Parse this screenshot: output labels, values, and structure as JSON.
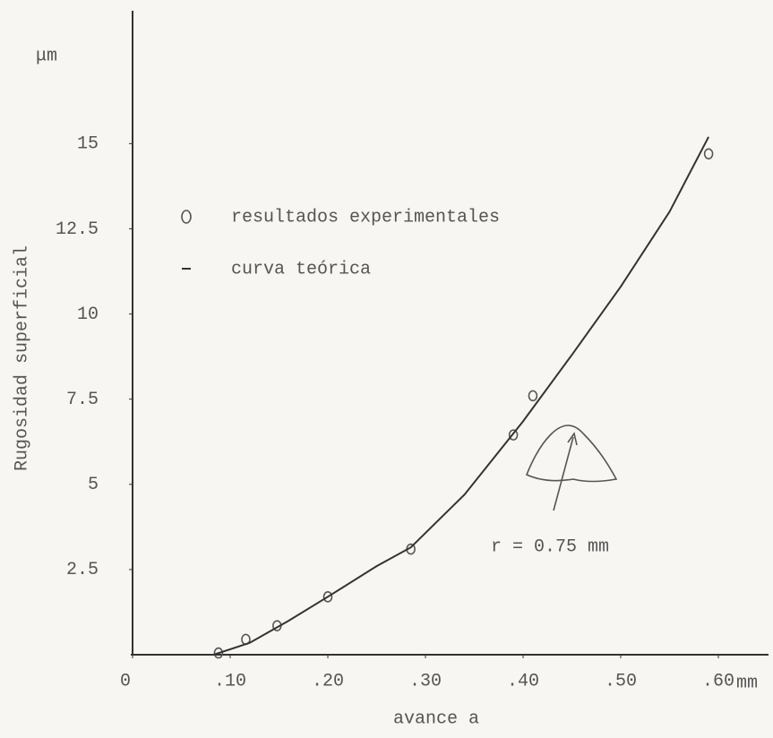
{
  "chart_data": {
    "type": "scatter",
    "y_unit": "μm",
    "x_unit": "mm",
    "xlabel": "avance a",
    "ylabel": "Rugosidad superficial",
    "annotation": "r = 0.75 mm",
    "xlim": [
      0,
      0.65
    ],
    "ylim": [
      0,
      18.9
    ],
    "xticks": [
      0,
      {
        "value": 0.1,
        "label": ".10"
      },
      {
        "value": 0.2,
        "label": ".20"
      },
      {
        "value": 0.3,
        "label": ".30"
      },
      {
        "value": 0.4,
        "label": ".40"
      },
      {
        "value": 0.5,
        "label": ".50"
      },
      {
        "value": 0.6,
        "label": ".60"
      }
    ],
    "yticks": [
      2.5,
      5,
      7.5,
      10,
      12.5,
      15
    ],
    "grid": false,
    "series": [
      {
        "name": "resultados experimentales",
        "color": "#555555",
        "marker": "circle",
        "x": [
          0.088,
          0.116,
          0.148,
          0.2,
          0.285,
          0.39,
          0.41,
          0.59
        ],
        "values": [
          0.05,
          0.45,
          0.85,
          1.7,
          3.1,
          6.45,
          7.6,
          14.7
        ]
      },
      {
        "name": "curva teórica",
        "color": "#333333",
        "marker": "line",
        "x": [
          0.083,
          0.12,
          0.16,
          0.2,
          0.25,
          0.285,
          0.34,
          0.4,
          0.45,
          0.5,
          0.55,
          0.59
        ],
        "values": [
          0,
          0.35,
          1.0,
          1.7,
          2.6,
          3.15,
          4.7,
          6.85,
          8.8,
          10.8,
          13.0,
          15.2
        ]
      }
    ]
  }
}
